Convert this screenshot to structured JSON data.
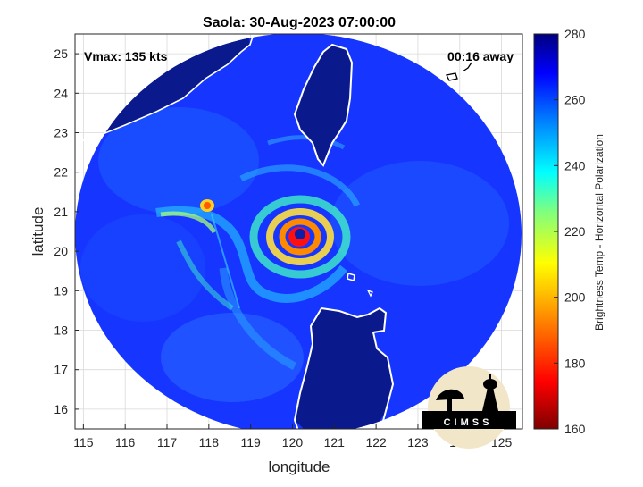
{
  "title": "Saola: 30-Aug-2023 07:00:00",
  "vmax_label": "Vmax: 135 kts",
  "time_away_label": "00:16 away",
  "xlabel": "longitude",
  "ylabel": "latitude",
  "colorbar_label": "Brightness Temp - Horizontal Polarization",
  "logo_text": "CIMSS",
  "chart_data": {
    "type": "heatmap",
    "x_ticks": [
      "115",
      "116",
      "117",
      "118",
      "119",
      "120",
      "121",
      "122",
      "123",
      "124",
      "125"
    ],
    "y_ticks": [
      "16",
      "17",
      "18",
      "19",
      "20",
      "21",
      "22",
      "23",
      "24",
      "25"
    ],
    "xlim": [
      114.8,
      125.5
    ],
    "ylim": [
      15.5,
      25.5
    ],
    "colorbar_ticks": [
      "160",
      "180",
      "200",
      "220",
      "240",
      "260",
      "280"
    ],
    "clim": [
      160,
      280
    ],
    "grid": true,
    "storm_center": {
      "lon": 120.2,
      "lat": 20.35
    }
  },
  "colors": {
    "background": "#ffffff",
    "swath_base": "#1a3cff",
    "land": "#0a1a8c",
    "coastline": "#ffffff"
  }
}
